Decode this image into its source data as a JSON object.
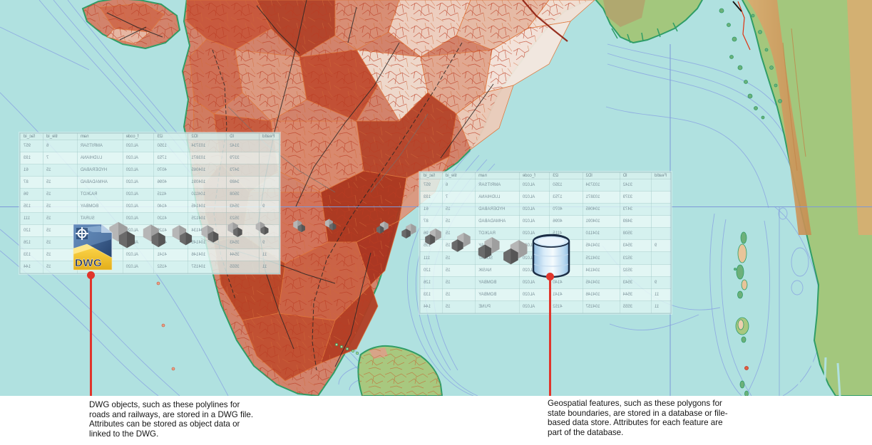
{
  "attribute_table": {
    "columns": [
      "FeatId",
      "ID",
      "ID2",
      "i23",
      "f_code",
      "nam",
      "tile_id",
      "fac_id"
    ],
    "rows": [
      [
        "",
        "3142",
        "103734",
        "1350",
        "AL020",
        "AMRITSAR",
        "6",
        "957"
      ],
      [
        "",
        "3379",
        "103871",
        "1753",
        "AL020",
        "LUDHIANA",
        "7",
        "193"
      ],
      [
        "",
        "3473",
        "104065",
        "4070",
        "AL020",
        "HYDERABAD",
        "15",
        "61"
      ],
      [
        "",
        "3489",
        "104091",
        "4096",
        "AL020",
        "AHMADABAD",
        "15",
        "87"
      ],
      [
        "",
        "3508",
        "104110",
        "4115",
        "AL020",
        "RAJKOT",
        "15",
        "96"
      ],
      [
        "9",
        "3543",
        "104145",
        "4140",
        "AL020",
        "BOMBAY",
        "15",
        "135"
      ],
      [
        "",
        "3523",
        "104125",
        "4120",
        "AL020",
        "SURAT",
        "15",
        "111"
      ],
      [
        "",
        "3532",
        "104134",
        "4129",
        "AL020",
        "NASIK",
        "15",
        "120"
      ],
      [
        "9",
        "3543",
        "104145",
        "4140",
        "AL020",
        "BOMBAY",
        "15",
        "126"
      ],
      [
        "11",
        "3544",
        "104146",
        "4141",
        "AL020",
        "BOMBAY",
        "15",
        "133"
      ],
      [
        "11",
        "3555",
        "104157",
        "4152",
        "AL020",
        "PUNE",
        "15",
        "144"
      ]
    ]
  },
  "icons": {
    "dwg_label": "DWG"
  },
  "callouts": {
    "dwg": {
      "lines": [
        "DWG objects, such as these polylines for",
        "roads and railways, are stored in a DWG file.",
        "Attributes can be stored as object data or",
        "linked to the DWG."
      ]
    },
    "geospatial": {
      "lines": [
        "Geospatial features, such as these polygons for",
        "state boundaries, are stored in a database or file-",
        "based data store. Attributes for each feature are",
        "part of the database."
      ]
    }
  },
  "colors": {
    "ocean": "#b0e1e0",
    "contour_blue": "#8da9e2",
    "graticule_blue": "#7d99d9",
    "land_red_base": "#d2836c",
    "lowland_green": "#a3c77d",
    "mountain_tan": "#dcab70",
    "coast_fringe_green": "#2f9d66",
    "callout_red": "#e0352b",
    "table_text": "#7d939b",
    "cube_light_gray": "#b6b6b6",
    "cube_dark_gray": "#6a6a6a"
  }
}
